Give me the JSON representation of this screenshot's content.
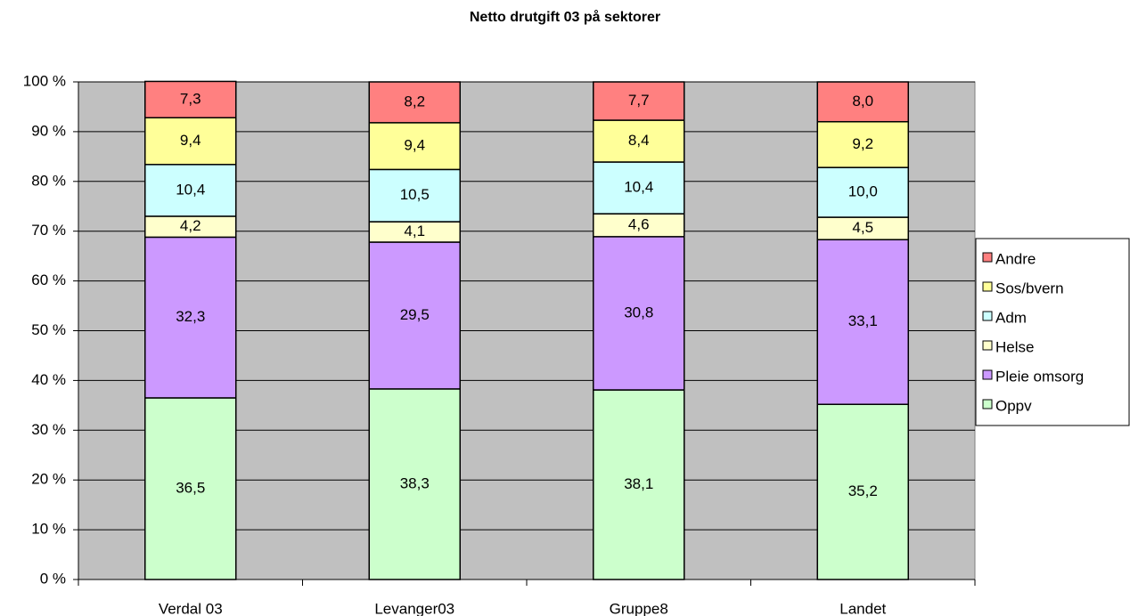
{
  "chart_data": {
    "type": "stacked_bar_100",
    "title": "Netto drutgift 03 på sektorer",
    "categories": [
      "Verdal 03",
      "Levanger03",
      "Gruppe8",
      "Landet"
    ],
    "series": [
      {
        "name": "Oppv",
        "color": "#ccffcc",
        "values": [
          36.5,
          38.3,
          38.1,
          35.2
        ],
        "value_labels": [
          "36,5",
          "38,3",
          "38,1",
          "35,2"
        ]
      },
      {
        "name": "Pleie omsorg",
        "color": "#cc99ff",
        "values": [
          32.3,
          29.5,
          30.8,
          33.1
        ],
        "value_labels": [
          "32,3",
          "29,5",
          "30,8",
          "33,1"
        ]
      },
      {
        "name": "Helse",
        "color": "#ffffcc",
        "values": [
          4.2,
          4.1,
          4.6,
          4.5
        ],
        "value_labels": [
          "4,2",
          "4,1",
          "4,6",
          "4,5"
        ]
      },
      {
        "name": "Adm",
        "color": "#ccffff",
        "values": [
          10.4,
          10.5,
          10.4,
          10.0
        ],
        "value_labels": [
          "10,4",
          "10,5",
          "10,4",
          "10,0"
        ]
      },
      {
        "name": "Sos/bvern",
        "color": "#ffff99",
        "values": [
          9.4,
          9.4,
          8.4,
          9.2
        ],
        "value_labels": [
          "9,4",
          "9,4",
          "8,4",
          "9,2"
        ]
      },
      {
        "name": "Andre",
        "color": "#ff8080",
        "values": [
          7.3,
          8.2,
          7.7,
          8.0
        ],
        "value_labels": [
          "7,3",
          "8,2",
          "7,7",
          "8,0"
        ]
      }
    ],
    "ylim": [
      0,
      100
    ],
    "yticks": [
      {
        "value": 0,
        "label": "0 %"
      },
      {
        "value": 10,
        "label": "10 %"
      },
      {
        "value": 20,
        "label": "20 %"
      },
      {
        "value": 30,
        "label": "30 %"
      },
      {
        "value": 40,
        "label": "40 %"
      },
      {
        "value": 50,
        "label": "50 %"
      },
      {
        "value": 60,
        "label": "60 %"
      },
      {
        "value": 70,
        "label": "70 %"
      },
      {
        "value": 80,
        "label": "80 %"
      },
      {
        "value": 90,
        "label": "90 %"
      },
      {
        "value": 100,
        "label": "100 %"
      }
    ],
    "grid": true,
    "legend": "right",
    "plot_background": "#c0c0c0"
  }
}
